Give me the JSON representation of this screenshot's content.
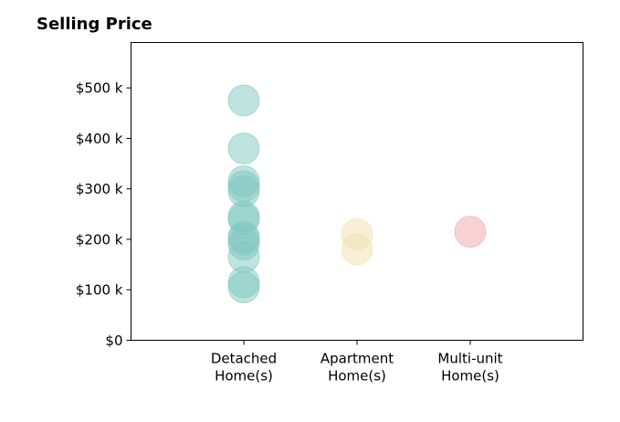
{
  "chart_data": {
    "type": "scatter",
    "title": "Selling Price",
    "xlabel": "",
    "ylabel": "",
    "categories": [
      "Detached\nHome(s)",
      "Apartment\nHome(s)",
      "Multi-unit\nHome(s)"
    ],
    "ylim": [
      0,
      590000
    ],
    "yticks": [
      0,
      100000,
      200000,
      300000,
      400000,
      500000
    ],
    "ytick_labels": [
      "$0",
      "$100 k",
      "$200 k",
      "$300 k",
      "$400 k",
      "$500 k"
    ],
    "grid": false,
    "series": [
      {
        "category_index": 0,
        "color": "#7fc8c0",
        "values": [
          475000,
          380000,
          315000,
          305000,
          295000,
          245000,
          240000,
          205000,
          200000,
          190000,
          165000,
          115000,
          105000
        ]
      },
      {
        "category_index": 1,
        "color": "#f3dfaf",
        "values": [
          210000,
          180000
        ]
      },
      {
        "category_index": 2,
        "color": "#f4a4ac",
        "values": [
          215000
        ]
      }
    ]
  }
}
